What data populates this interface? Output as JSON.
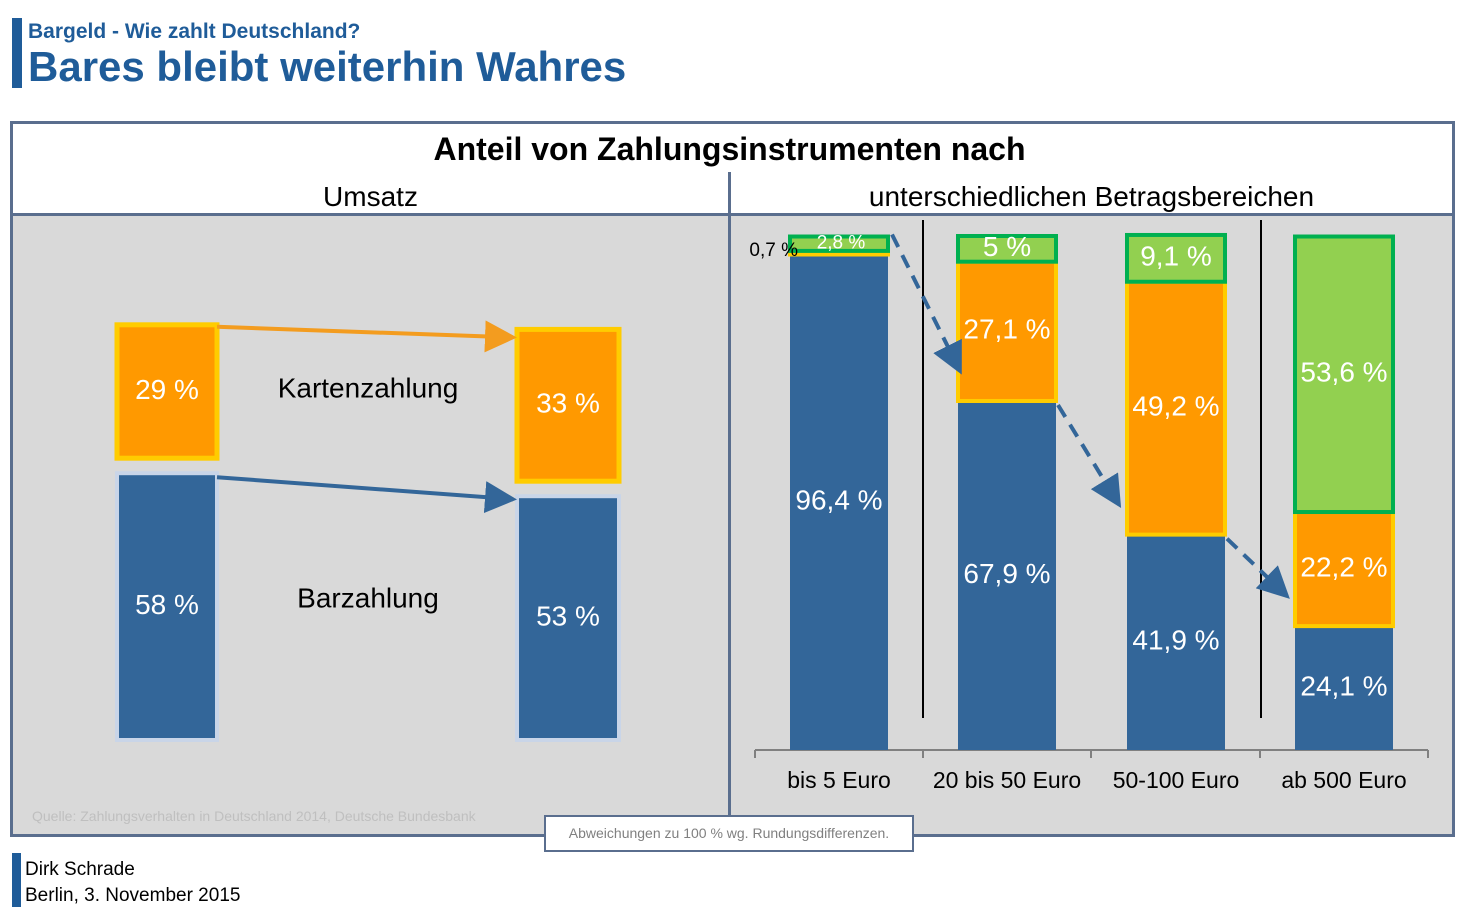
{
  "header": {
    "subtitle": "Bargeld - Wie zahlt Deutschland?",
    "title": "Bares bleibt weiterhin Wahres"
  },
  "box": {
    "title_main": "Anteil von Zahlungsinstrumenten nach",
    "left_heading": "Umsatz",
    "right_heading": "unterschiedlichen Betragsbereichen"
  },
  "colors": {
    "cash": "#336699",
    "card": "#ff9900",
    "other": "#92d050",
    "card_border": "#ffcc00",
    "other_border": "#00b050",
    "brand": "#1f5c99",
    "panel_bg": "#d9d9d9",
    "frame": "#5a6e8e"
  },
  "chart_data": [
    {
      "type": "bar",
      "title": "Umsatz",
      "categories": [
        "",
        ""
      ],
      "series": [
        {
          "name": "Barzahlung",
          "values": [
            58,
            53
          ],
          "labels": [
            "58 %",
            "53 %"
          ]
        },
        {
          "name": "Kartenzahlung",
          "values": [
            29,
            33
          ],
          "labels": [
            "29 %",
            "33 %"
          ]
        }
      ]
    },
    {
      "type": "bar",
      "stacked": true,
      "categories": [
        "bis 5 Euro",
        "20 bis 50 Euro",
        "50-100 Euro",
        "ab 500 Euro"
      ],
      "series": [
        {
          "values": [
            96.4,
            67.9,
            41.9,
            24.1
          ],
          "labels": [
            "96,4 %",
            "67,9 %",
            "41,9 %",
            "24,1 %"
          ]
        },
        {
          "values": [
            0.7,
            27.1,
            49.2,
            22.2
          ],
          "labels": [
            "0,7 %",
            "27,1 %",
            "49,2 %",
            "22,2 %"
          ]
        },
        {
          "values": [
            2.8,
            5,
            9.1,
            53.6
          ],
          "labels": [
            "2,8 %",
            "5 %",
            "9,1 %",
            "53,6 %"
          ]
        }
      ]
    }
  ],
  "notes": {
    "source": "Quelle: Zahlungsverhalten in Deutschland 2014, Deutsche Bundesbank",
    "rounding": "Abweichungen zu 100 % wg. Rundungsdifferenzen."
  },
  "footer": {
    "author": "Dirk Schrade",
    "date": "Berlin, 3. November 2015"
  }
}
